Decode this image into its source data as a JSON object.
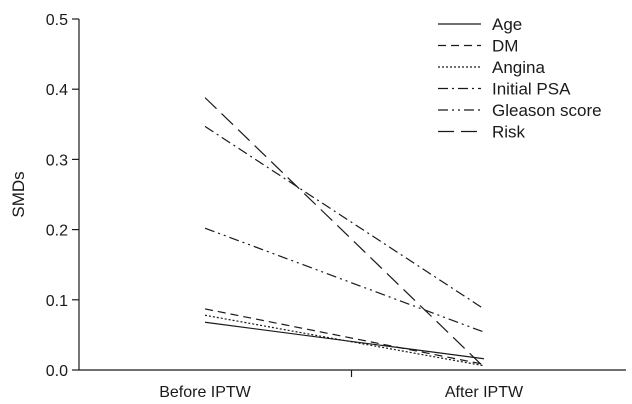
{
  "chart_data": {
    "type": "line",
    "title": "",
    "xlabel": "",
    "ylabel": "SMDs",
    "categories": [
      "Before IPTW",
      "After IPTW"
    ],
    "ylim": [
      0,
      0.5
    ],
    "yticks": [
      "0.0",
      "0.1",
      "0.2",
      "0.3",
      "0.4",
      "0.5"
    ],
    "grid": false,
    "legend_position": "top-right",
    "series": [
      {
        "name": "Age",
        "values": [
          0.068,
          0.016
        ],
        "dash": "solid"
      },
      {
        "name": "DM",
        "values": [
          0.087,
          0.008
        ],
        "dash": "dashed"
      },
      {
        "name": "Angina",
        "values": [
          0.078,
          0.006
        ],
        "dash": "dotted"
      },
      {
        "name": "Initial PSA",
        "values": [
          0.347,
          0.087
        ],
        "dash": "dashdot"
      },
      {
        "name": "Gleason score",
        "values": [
          0.202,
          0.054
        ],
        "dash": "dashdotdot"
      },
      {
        "name": "Risk",
        "values": [
          0.388,
          0.004
        ],
        "dash": "longdash"
      }
    ]
  }
}
